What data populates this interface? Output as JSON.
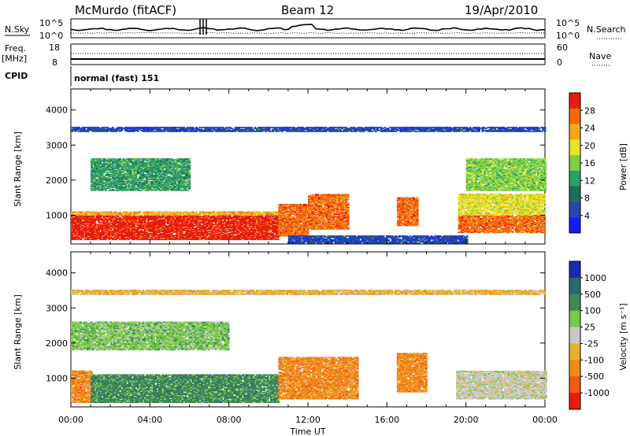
{
  "header": {
    "station": "McMurdo (fitACF)",
    "beam": "Beam 12",
    "date": "19/Apr/2010"
  },
  "aux_panels": {
    "nsky_label": "N.Sky",
    "nsky_ticks": [
      "10^5",
      "10^0"
    ],
    "nsearch_label": "N.Search",
    "nsearch_ticks": [
      "10^5",
      "10^0"
    ],
    "freq_label": "Freq.",
    "freq_unit": "[MHz]",
    "freq_ticks": [
      "18",
      "8"
    ],
    "nave_label": "Nave",
    "nave_ticks": [
      "60",
      "0"
    ],
    "cpid_label": "CPID",
    "cpid_value": "normal (fast) 151"
  },
  "colors": {
    "power_scale": [
      "#1a1aff",
      "#2448b0",
      "#1f6e5a",
      "#2f9e6b",
      "#7fd045",
      "#e8e32b",
      "#f2a81e",
      "#f36a0e",
      "#e81c0c"
    ],
    "velocity_scale": [
      "#1a2bb0",
      "#2a6a6f",
      "#3d8a55",
      "#79c84a",
      "#c8c8c8",
      "#e8b030",
      "#f08a1c",
      "#f05a14",
      "#e81c0c"
    ]
  },
  "chart_data": [
    {
      "type": "heatmap",
      "panel": "power",
      "xlabel": "",
      "ylabel": "Slant Range [km]",
      "xlim": [
        0,
        24
      ],
      "ylim": [
        180,
        4600
      ],
      "yticks": [
        "1000",
        "2000",
        "3000",
        "4000"
      ],
      "colorbar_label": "Power [dB]",
      "colorbar_ticks": [
        "4",
        "8",
        "12",
        "16",
        "20",
        "24",
        "28"
      ],
      "bands": [
        {
          "t0": 0.0,
          "t1": 10.5,
          "r0": 300,
          "r1": 1000,
          "class": 8
        },
        {
          "t0": 0.0,
          "t1": 10.5,
          "r0": 1000,
          "r1": 1100,
          "class": 6
        },
        {
          "t0": 10.5,
          "t1": 12.0,
          "r0": 400,
          "r1": 1300,
          "class": 7
        },
        {
          "t0": 12.0,
          "t1": 14.0,
          "r0": 600,
          "r1": 1600,
          "class": 7
        },
        {
          "t0": 16.5,
          "t1": 17.5,
          "r0": 700,
          "r1": 1500,
          "class": 7
        },
        {
          "t0": 19.6,
          "t1": 24.0,
          "r0": 500,
          "r1": 1000,
          "class": 7
        },
        {
          "t0": 19.6,
          "t1": 24.0,
          "r0": 1000,
          "r1": 1600,
          "class": 5
        },
        {
          "t0": 1.0,
          "t1": 6.0,
          "r0": 1700,
          "r1": 2600,
          "class": 3
        },
        {
          "t0": 20.0,
          "t1": 24.0,
          "r0": 1700,
          "r1": 2600,
          "class": 4
        },
        {
          "t0": 0.0,
          "t1": 24.0,
          "r0": 3380,
          "r1": 3500,
          "class": 1
        },
        {
          "t0": 11.0,
          "t1": 20.0,
          "r0": 200,
          "r1": 420,
          "class": 1
        }
      ]
    },
    {
      "type": "heatmap",
      "panel": "velocity",
      "xlabel": "Time UT",
      "ylabel": "Slant Range [km]",
      "xlim": [
        0,
        24
      ],
      "ylim": [
        180,
        4600
      ],
      "yticks": [
        "1000",
        "2000",
        "3000",
        "4000"
      ],
      "xticks": [
        "00:00",
        "04:00",
        "08:00",
        "12:00",
        "16:00",
        "20:00",
        "00:00"
      ],
      "colorbar_label": "Velocity [m s⁻¹]",
      "colorbar_ticks": [
        "1000",
        "500",
        "100",
        "25",
        "-25",
        "-100",
        "-500",
        "-1000"
      ],
      "bands": [
        {
          "t0": 0.0,
          "t1": 1.0,
          "r0": 300,
          "r1": 1200,
          "class": 6
        },
        {
          "t0": 1.0,
          "t1": 10.5,
          "r0": 300,
          "r1": 1100,
          "class": 2
        },
        {
          "t0": 10.5,
          "t1": 14.5,
          "r0": 400,
          "r1": 1600,
          "class": 6
        },
        {
          "t0": 16.5,
          "t1": 18.0,
          "r0": 600,
          "r1": 1700,
          "class": 6
        },
        {
          "t0": 19.5,
          "t1": 24.0,
          "r0": 400,
          "r1": 1200,
          "class": 4
        },
        {
          "t0": 0.0,
          "t1": 8.0,
          "r0": 1800,
          "r1": 2600,
          "class": 3
        },
        {
          "t0": 0.0,
          "t1": 24.0,
          "r0": 3380,
          "r1": 3500,
          "class": 5
        }
      ]
    }
  ]
}
